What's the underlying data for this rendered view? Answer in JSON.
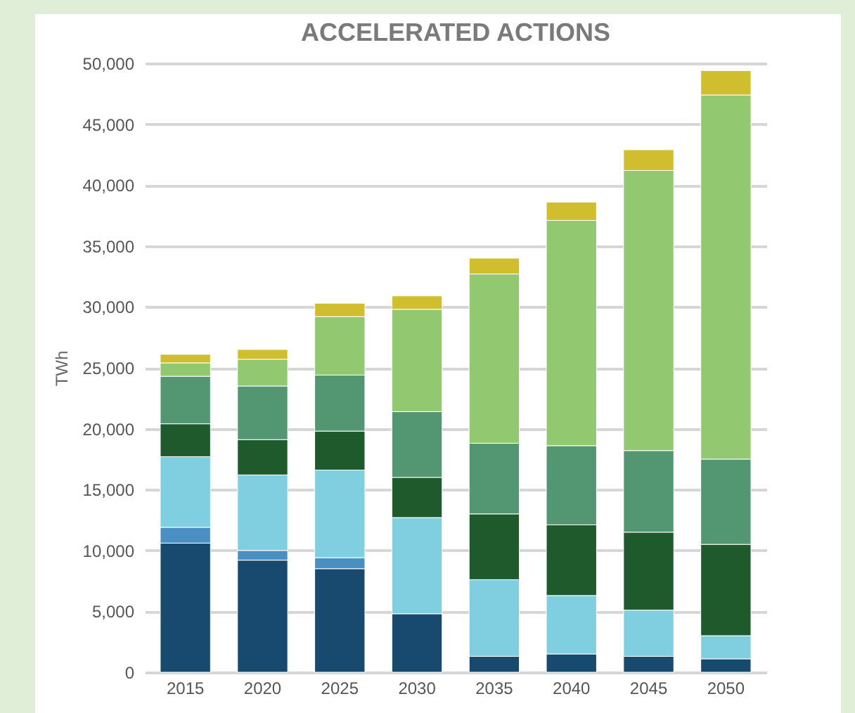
{
  "chart_data": {
    "type": "bar",
    "title": "ACCELERATED ACTIONS",
    "ylabel": "TWh",
    "stacked": true,
    "categories": [
      "2015",
      "2020",
      "2025",
      "2030",
      "2035",
      "2040",
      "2045",
      "2050"
    ],
    "series": [
      {
        "color": "#174a6e",
        "values": [
          10600,
          9200,
          8500,
          4800,
          1300,
          1500,
          1300,
          1100
        ]
      },
      {
        "color": "#4a8fc4",
        "values": [
          1300,
          800,
          900,
          null,
          null,
          null,
          null,
          null
        ]
      },
      {
        "color": "#7fcfe0",
        "values": [
          5800,
          6200,
          7200,
          7900,
          6300,
          4800,
          3800,
          1900
        ]
      },
      {
        "color": "#1e5a2c",
        "values": [
          2700,
          2900,
          3200,
          3300,
          5400,
          5800,
          6400,
          7500
        ]
      },
      {
        "color": "#529672",
        "values": [
          3900,
          4400,
          4600,
          5400,
          5800,
          6500,
          6700,
          7000
        ]
      },
      {
        "color": "#92c970",
        "values": [
          1100,
          2200,
          4800,
          8400,
          13900,
          18500,
          23000,
          29900
        ]
      },
      {
        "color": "#d1be2e",
        "values": [
          700,
          800,
          1100,
          1100,
          1300,
          1500,
          1700,
          2000
        ]
      }
    ],
    "ylim": [
      0,
      50000
    ],
    "yticks": [
      0,
      {
        "value": 5000,
        "label": "5,000"
      },
      {
        "value": 10000,
        "label": "10,000"
      },
      {
        "value": 15000,
        "label": "15,000"
      },
      {
        "value": 20000,
        "label": "20,000"
      },
      {
        "value": 25000,
        "label": "25,000"
      },
      {
        "value": 30000,
        "label": "30,000"
      },
      {
        "value": 35000,
        "label": "35,000"
      },
      {
        "value": 40000,
        "label": "40,000"
      },
      {
        "value": 45000,
        "label": "45,000"
      },
      {
        "value": 50000,
        "label": "50,000"
      }
    ],
    "grid": "y"
  }
}
